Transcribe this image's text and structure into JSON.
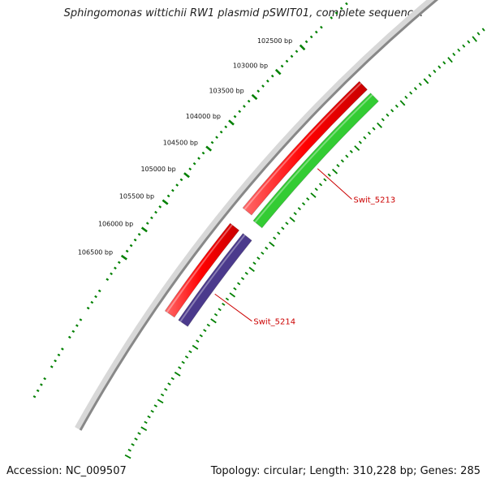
{
  "title": "Sphingomonas wittichii RW1 plasmid pSWIT01, complete sequenc...",
  "footer": {
    "accession": "Accession: NC_009507",
    "stats": "Topology: circular; Length: 310,228 bp; Genes: 285"
  },
  "map": {
    "ticks": [
      {
        "bp": 102500,
        "label": "102500 bp"
      },
      {
        "bp": 103000,
        "label": "103000 bp"
      },
      {
        "bp": 103500,
        "label": "103500 bp"
      },
      {
        "bp": 104000,
        "label": "104000 bp"
      },
      {
        "bp": 104500,
        "label": "104500 bp"
      },
      {
        "bp": 105000,
        "label": "105000 bp"
      },
      {
        "bp": 105500,
        "label": "105500 bp"
      },
      {
        "bp": 106000,
        "label": "106000 bp"
      },
      {
        "bp": 106500,
        "label": "106500 bp"
      }
    ],
    "genes": [
      {
        "name": "Swit_5213",
        "track": "forward",
        "color": "#33cc33",
        "start_bp": 102250,
        "end_bp": 104900,
        "show_label": true,
        "label_bp": 103650
      },
      {
        "name": "Swit_5214",
        "track": "reverse",
        "color": "#4b3a8c",
        "start_bp": 105150,
        "end_bp": 106800,
        "show_label": true,
        "label_bp": 106150
      },
      {
        "name": "cds_upper",
        "track": "cds",
        "color": "#ff0000",
        "start_bp": 102250,
        "end_bp": 104850,
        "show_label": false
      },
      {
        "name": "cds_lower",
        "track": "cds",
        "color": "#ff0000",
        "start_bp": 105150,
        "end_bp": 106800,
        "show_label": false
      }
    ],
    "colors": {
      "backbone": "#888888",
      "tick": "#008000",
      "label": "#cc0000"
    }
  }
}
